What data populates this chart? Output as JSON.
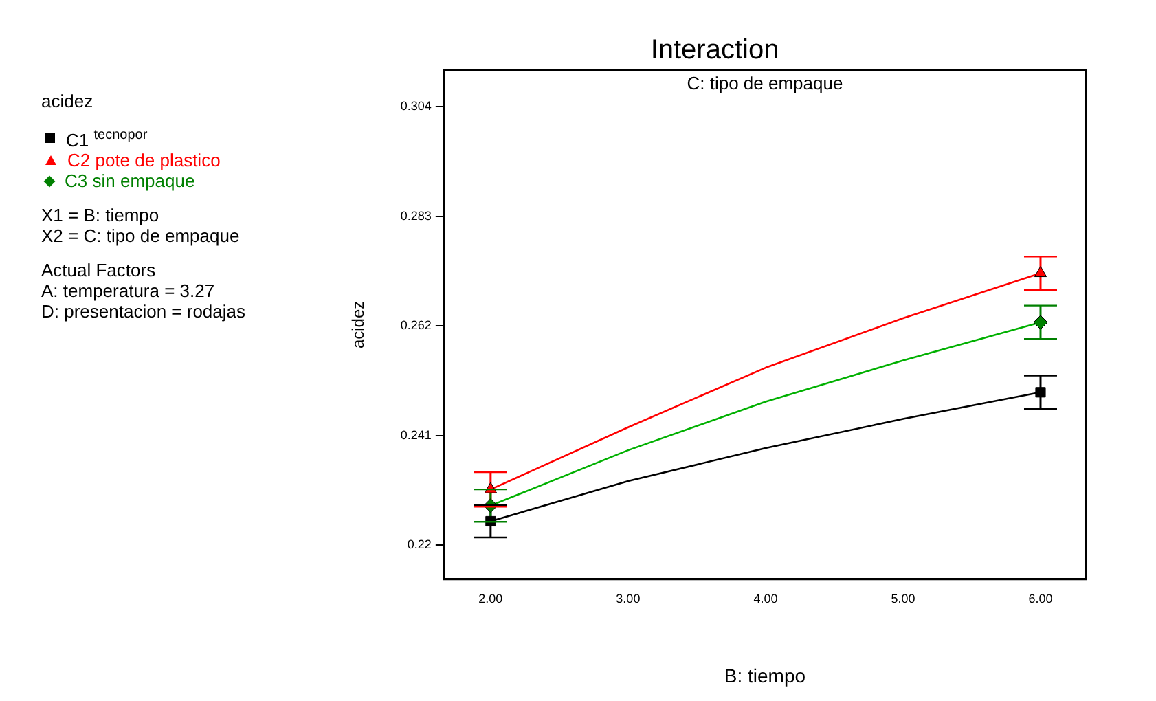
{
  "chart_data": {
    "type": "line",
    "title": "Interaction",
    "subtitle": "C: tipo de empaque",
    "xlabel": "B: tiempo",
    "ylabel": "acidez",
    "annotations": [
      "acidez",
      "X1 = B: tiempo",
      "X2 = C: tipo de empaque",
      "Actual Factors",
      "A: temperatura = 3.27",
      "D: presentacion = rodajas"
    ],
    "series": [
      {
        "name": "C1 $^{tecnopor}$",
        "type": "scatter",
        "color": "#000000",
        "marker": "square",
        "x": [
          2,
          6
        ],
        "values": [
          0.2246,
          0.2493
        ],
        "errors": [
          0.0031,
          0.0032
        ]
      },
      {
        "name": "C2 pote de plastico",
        "type": "scatter",
        "color": "#ff0000",
        "marker": "triangle",
        "x": [
          2,
          6
        ],
        "values": [
          0.2307,
          0.2721
        ],
        "errors": [
          0.0033,
          0.0032
        ]
      },
      {
        "name": "C3 sin empaque",
        "type": "scatter",
        "color": "#008000",
        "marker": "diamond",
        "x": [
          2,
          6
        ],
        "values": [
          0.2276,
          0.2627
        ],
        "errors": [
          0.0031,
          0.0032
        ]
      },
      {
        "type": "line",
        "color": "#000000",
        "marker": "none",
        "x": [
          2,
          3,
          4,
          5,
          6
        ],
        "values": [
          0.2246,
          0.2323,
          0.2386,
          0.2442,
          0.2493
        ]
      },
      {
        "type": "line",
        "color": "#ff0000",
        "marker": "none",
        "x": [
          2,
          3,
          4,
          5,
          6
        ],
        "values": [
          0.2307,
          0.2426,
          0.254,
          0.2635,
          0.2721
        ]
      },
      {
        "type": "line",
        "color": "#00b000",
        "marker": "none",
        "x": [
          2,
          3,
          4,
          5,
          6
        ],
        "values": [
          0.2276,
          0.2382,
          0.2475,
          0.2554,
          0.2627
        ]
      }
    ],
    "xlim": [
      1.66,
      6.33
    ],
    "xticks": [
      {
        "value": 2,
        "label": "2.00"
      },
      {
        "value": 3,
        "label": "3.00"
      },
      {
        "value": 4,
        "label": "4.00"
      },
      {
        "value": 5,
        "label": "5.00"
      },
      {
        "value": 6,
        "label": "6.00"
      }
    ],
    "ylim": [
      0.2135,
      0.311
    ],
    "yticks": [
      0.22,
      0.241,
      0.262,
      0.283,
      0.304
    ],
    "grid": false,
    "legend": "left"
  }
}
